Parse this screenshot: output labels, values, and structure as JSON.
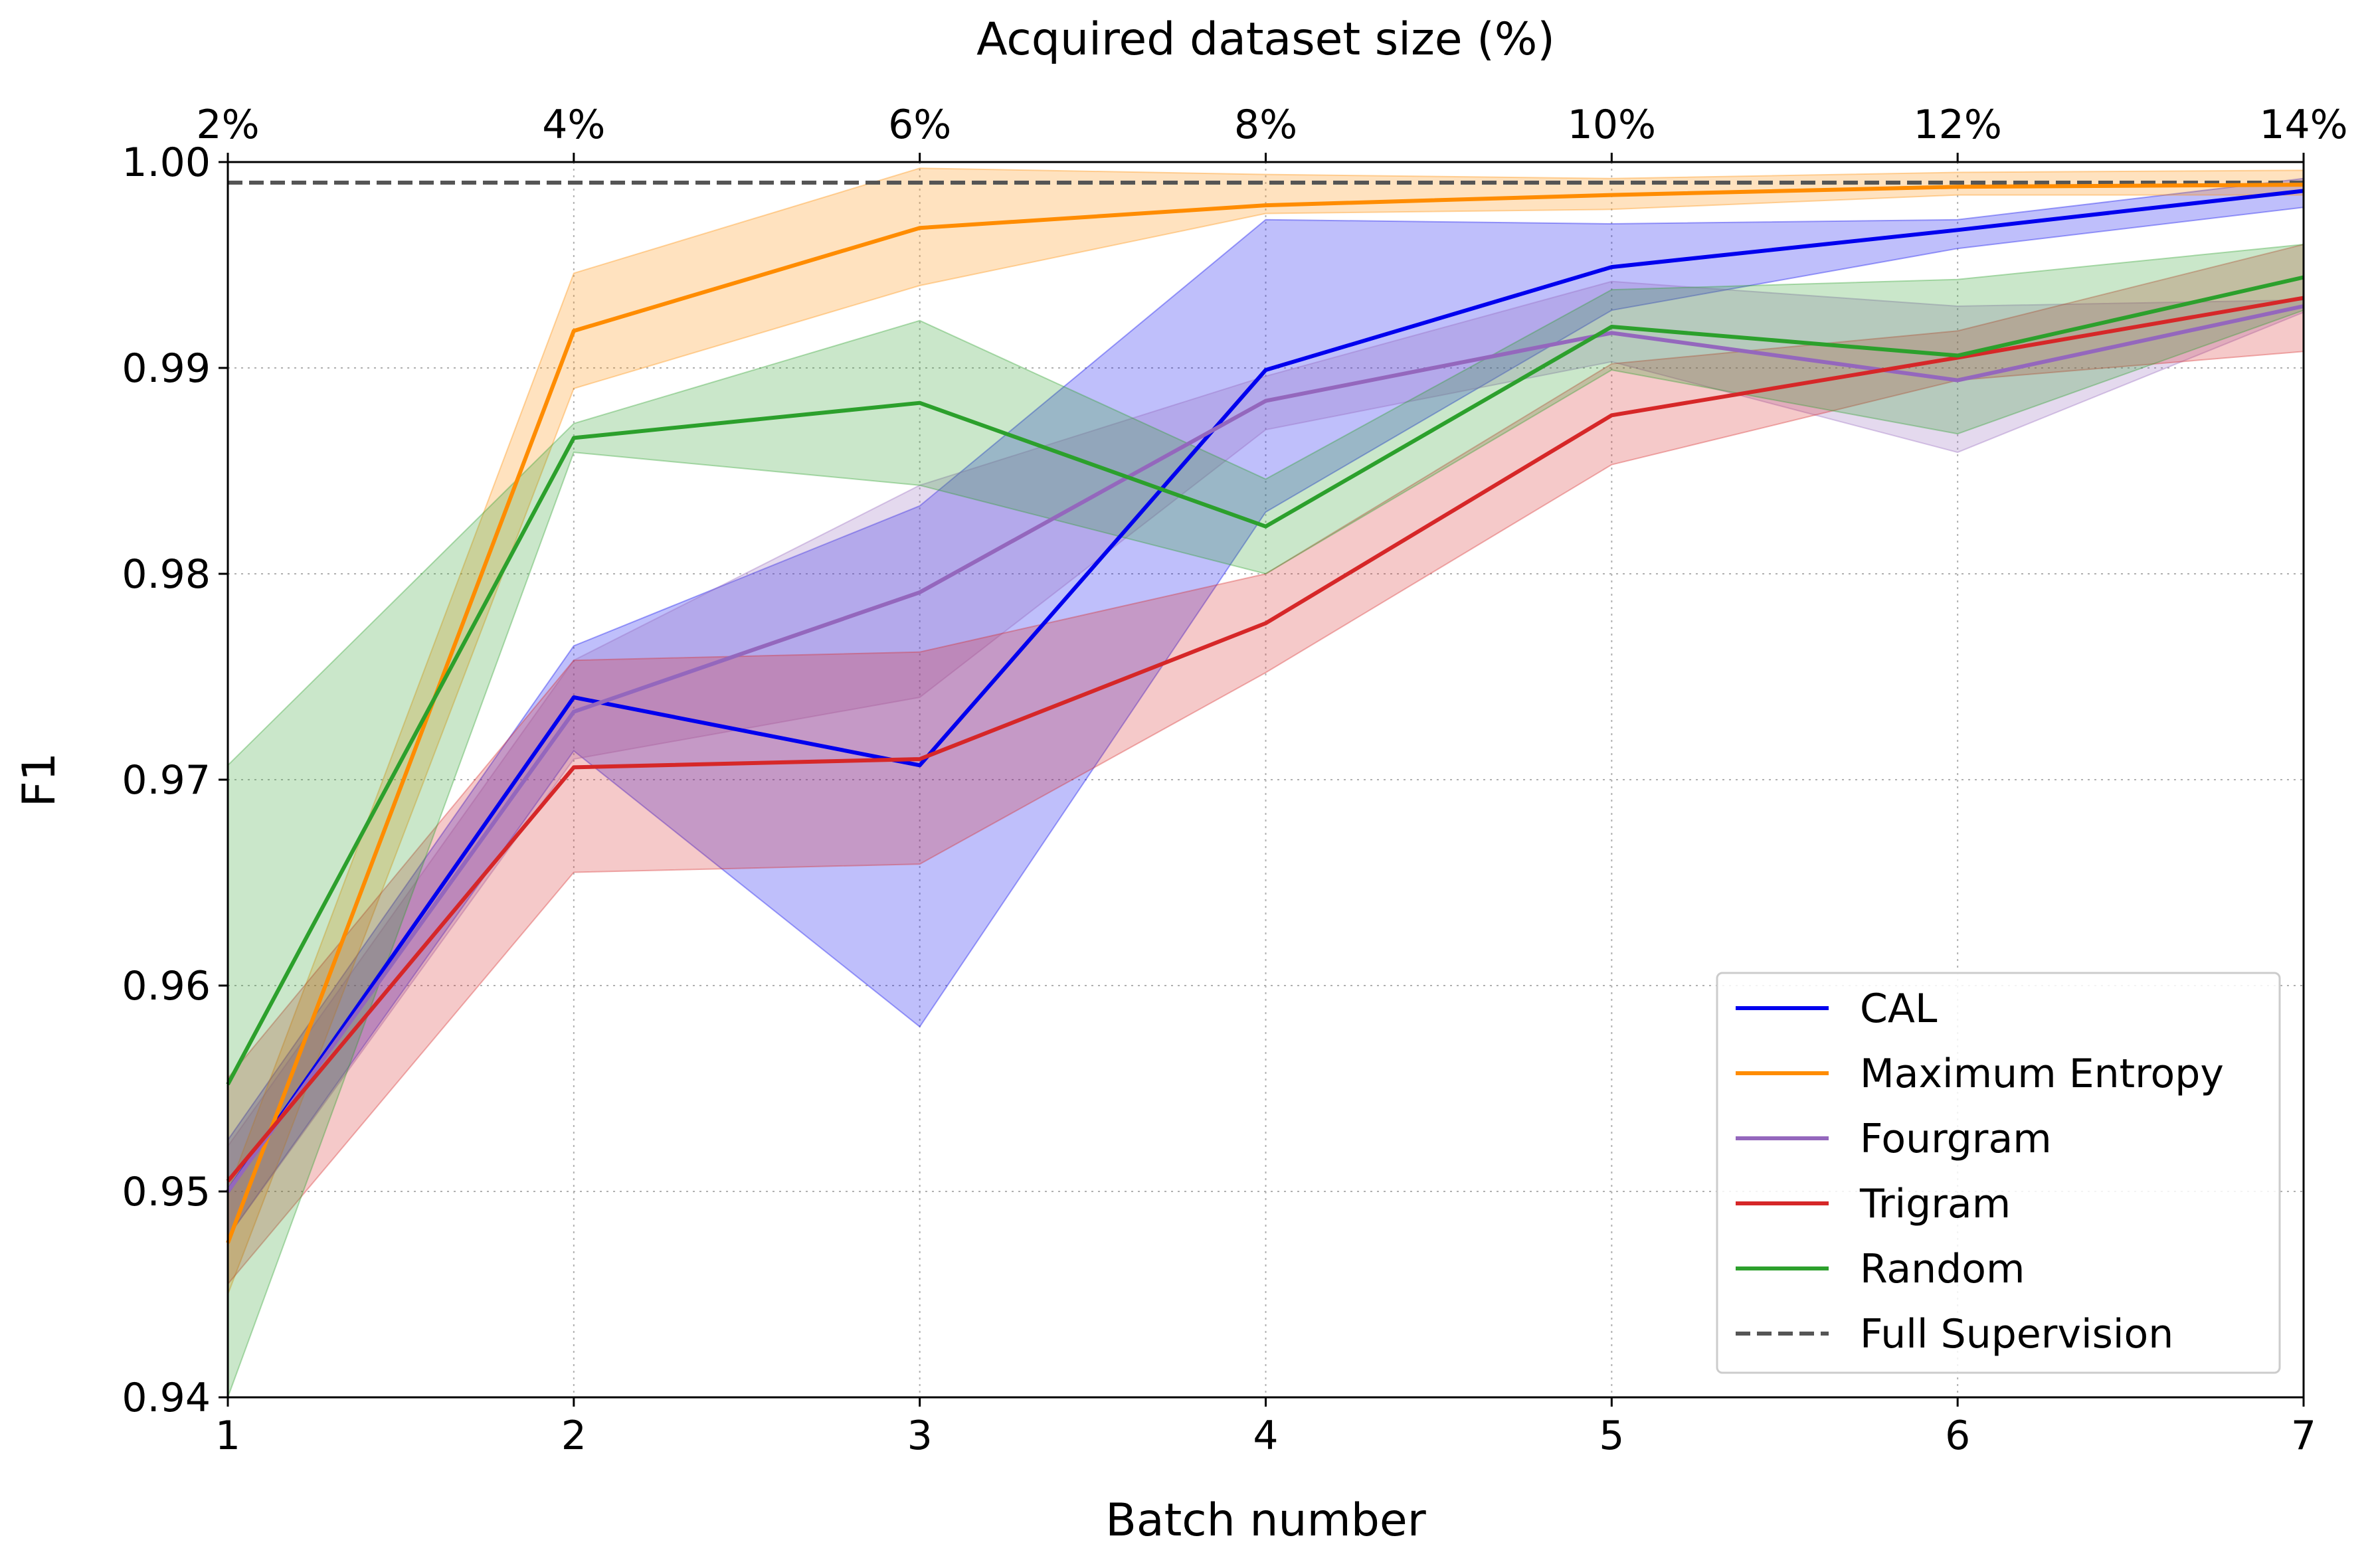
{
  "chart_data": {
    "type": "line",
    "title": "",
    "xlabel": "Batch number",
    "ylabel": "F1",
    "top_xlabel": "Acquired dataset size (%)",
    "x": [
      1,
      2,
      3,
      4,
      5,
      6,
      7
    ],
    "xlim": [
      1,
      7
    ],
    "ylim": [
      0.94,
      1.0
    ],
    "x_ticks": [
      "1",
      "2",
      "3",
      "4",
      "5",
      "6",
      "7"
    ],
    "top_x_ticks": [
      "2%",
      "4%",
      "6%",
      "8%",
      "10%",
      "12%",
      "14%"
    ],
    "y_ticks": [
      "0.94",
      "0.95",
      "0.96",
      "0.97",
      "0.98",
      "0.99",
      "1.00"
    ],
    "y_tick_values": [
      0.94,
      0.95,
      0.96,
      0.97,
      0.98,
      0.99,
      1.0
    ],
    "grid": true,
    "legend_position": "bottom-right",
    "series": [
      {
        "name": "CAL",
        "color": "#0000ee",
        "values": [
          0.95,
          0.974,
          0.9707,
          0.9899,
          0.9949,
          0.9967,
          0.9986
        ],
        "lower": [
          0.9478,
          0.9714,
          0.958,
          0.983,
          0.9928,
          0.9958,
          0.9978
        ],
        "upper": [
          0.9525,
          0.9765,
          0.9833,
          0.9972,
          0.997,
          0.9972,
          0.9992
        ]
      },
      {
        "name": "Maximum Entropy",
        "color": "#ff8c00",
        "values": [
          0.9475,
          0.9918,
          0.9968,
          0.9979,
          0.9984,
          0.9988,
          0.9989
        ],
        "lower": [
          0.945,
          0.989,
          0.994,
          0.9975,
          0.9977,
          0.9984,
          0.9984
        ],
        "upper": [
          0.95,
          0.9946,
          0.9997,
          0.9994,
          0.9992,
          0.9995,
          0.9996
        ]
      },
      {
        "name": "Fourgram",
        "color": "#9467bd",
        "values": [
          0.95,
          0.9733,
          0.9791,
          0.9884,
          0.9917,
          0.9894,
          0.993
        ],
        "lower": [
          0.9478,
          0.971,
          0.974,
          0.987,
          0.9903,
          0.9859,
          0.9927
        ],
        "upper": [
          0.9522,
          0.9758,
          0.9843,
          0.9896,
          0.9942,
          0.993,
          0.9933
        ]
      },
      {
        "name": "Trigram",
        "color": "#d62728",
        "values": [
          0.9505,
          0.9706,
          0.971,
          0.9776,
          0.9877,
          0.9905,
          0.9934
        ],
        "lower": [
          0.9455,
          0.9655,
          0.9659,
          0.9752,
          0.9853,
          0.9894,
          0.9908
        ],
        "upper": [
          0.9555,
          0.9758,
          0.9762,
          0.98,
          0.9902,
          0.9918,
          0.996
        ]
      },
      {
        "name": "Random",
        "color": "#2ca02c",
        "values": [
          0.9552,
          0.9866,
          0.9883,
          0.9823,
          0.992,
          0.9906,
          0.9944
        ],
        "lower": [
          0.94,
          0.9859,
          0.9843,
          0.98,
          0.9899,
          0.9868,
          0.9928
        ],
        "upper": [
          0.9707,
          0.9873,
          0.9923,
          0.9846,
          0.9938,
          0.9943,
          0.996
        ]
      }
    ],
    "reference_line": {
      "name": "Full Supervision",
      "value": 0.999,
      "color": "#555555",
      "style": "dashed"
    }
  }
}
